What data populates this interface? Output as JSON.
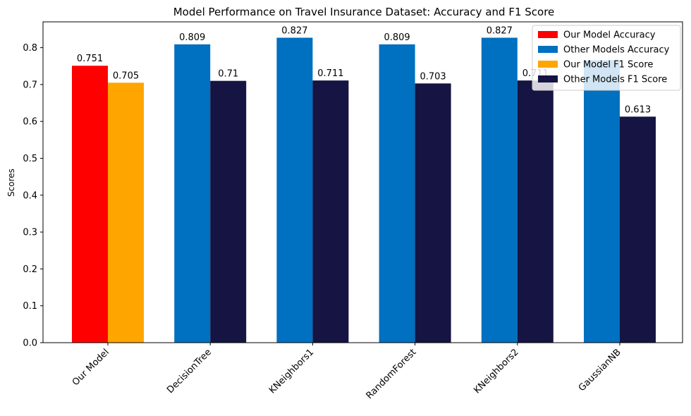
{
  "chart_data": {
    "type": "bar",
    "title": "Model Performance on Travel Insurance Dataset: Accuracy and F1 Score",
    "xlabel": "",
    "ylabel": "Scores",
    "ylim": [
      0,
      0.87
    ],
    "yticks": [
      0.0,
      0.1,
      0.2,
      0.3,
      0.4,
      0.5,
      0.6,
      0.7,
      0.8
    ],
    "ytick_labels": [
      "0.0",
      "0.1",
      "0.2",
      "0.3",
      "0.4",
      "0.5",
      "0.6",
      "0.7",
      "0.8"
    ],
    "categories": [
      "Our Model",
      "DecisionTree",
      "KNeighbors1",
      "RandomForest",
      "KNeighbors2",
      "GaussianNB"
    ],
    "accuracy": [
      0.751,
      0.809,
      0.827,
      0.809,
      0.827,
      0.766
    ],
    "accuracy_labels": [
      "0.751",
      "0.809",
      "0.827",
      "0.809",
      "0.827",
      ""
    ],
    "f1": [
      0.705,
      0.71,
      0.711,
      0.703,
      0.711,
      0.613
    ],
    "f1_labels": [
      "0.705",
      "0.71",
      "0.711",
      "0.703",
      "0.711",
      "0.613"
    ],
    "colors": {
      "our_accuracy": "#ff0000",
      "other_accuracy": "#0070c0",
      "our_f1": "#ffa500",
      "other_f1": "#161442"
    },
    "legend": {
      "placement": "top-right",
      "entries": [
        {
          "label": "Our Model Accuracy",
          "color_key": "our_accuracy"
        },
        {
          "label": "Other Models Accuracy",
          "color_key": "other_accuracy"
        },
        {
          "label": "Our Model F1 Score",
          "color_key": "our_f1"
        },
        {
          "label": "Other Models F1 Score",
          "color_key": "other_f1"
        }
      ]
    },
    "grid": false
  }
}
